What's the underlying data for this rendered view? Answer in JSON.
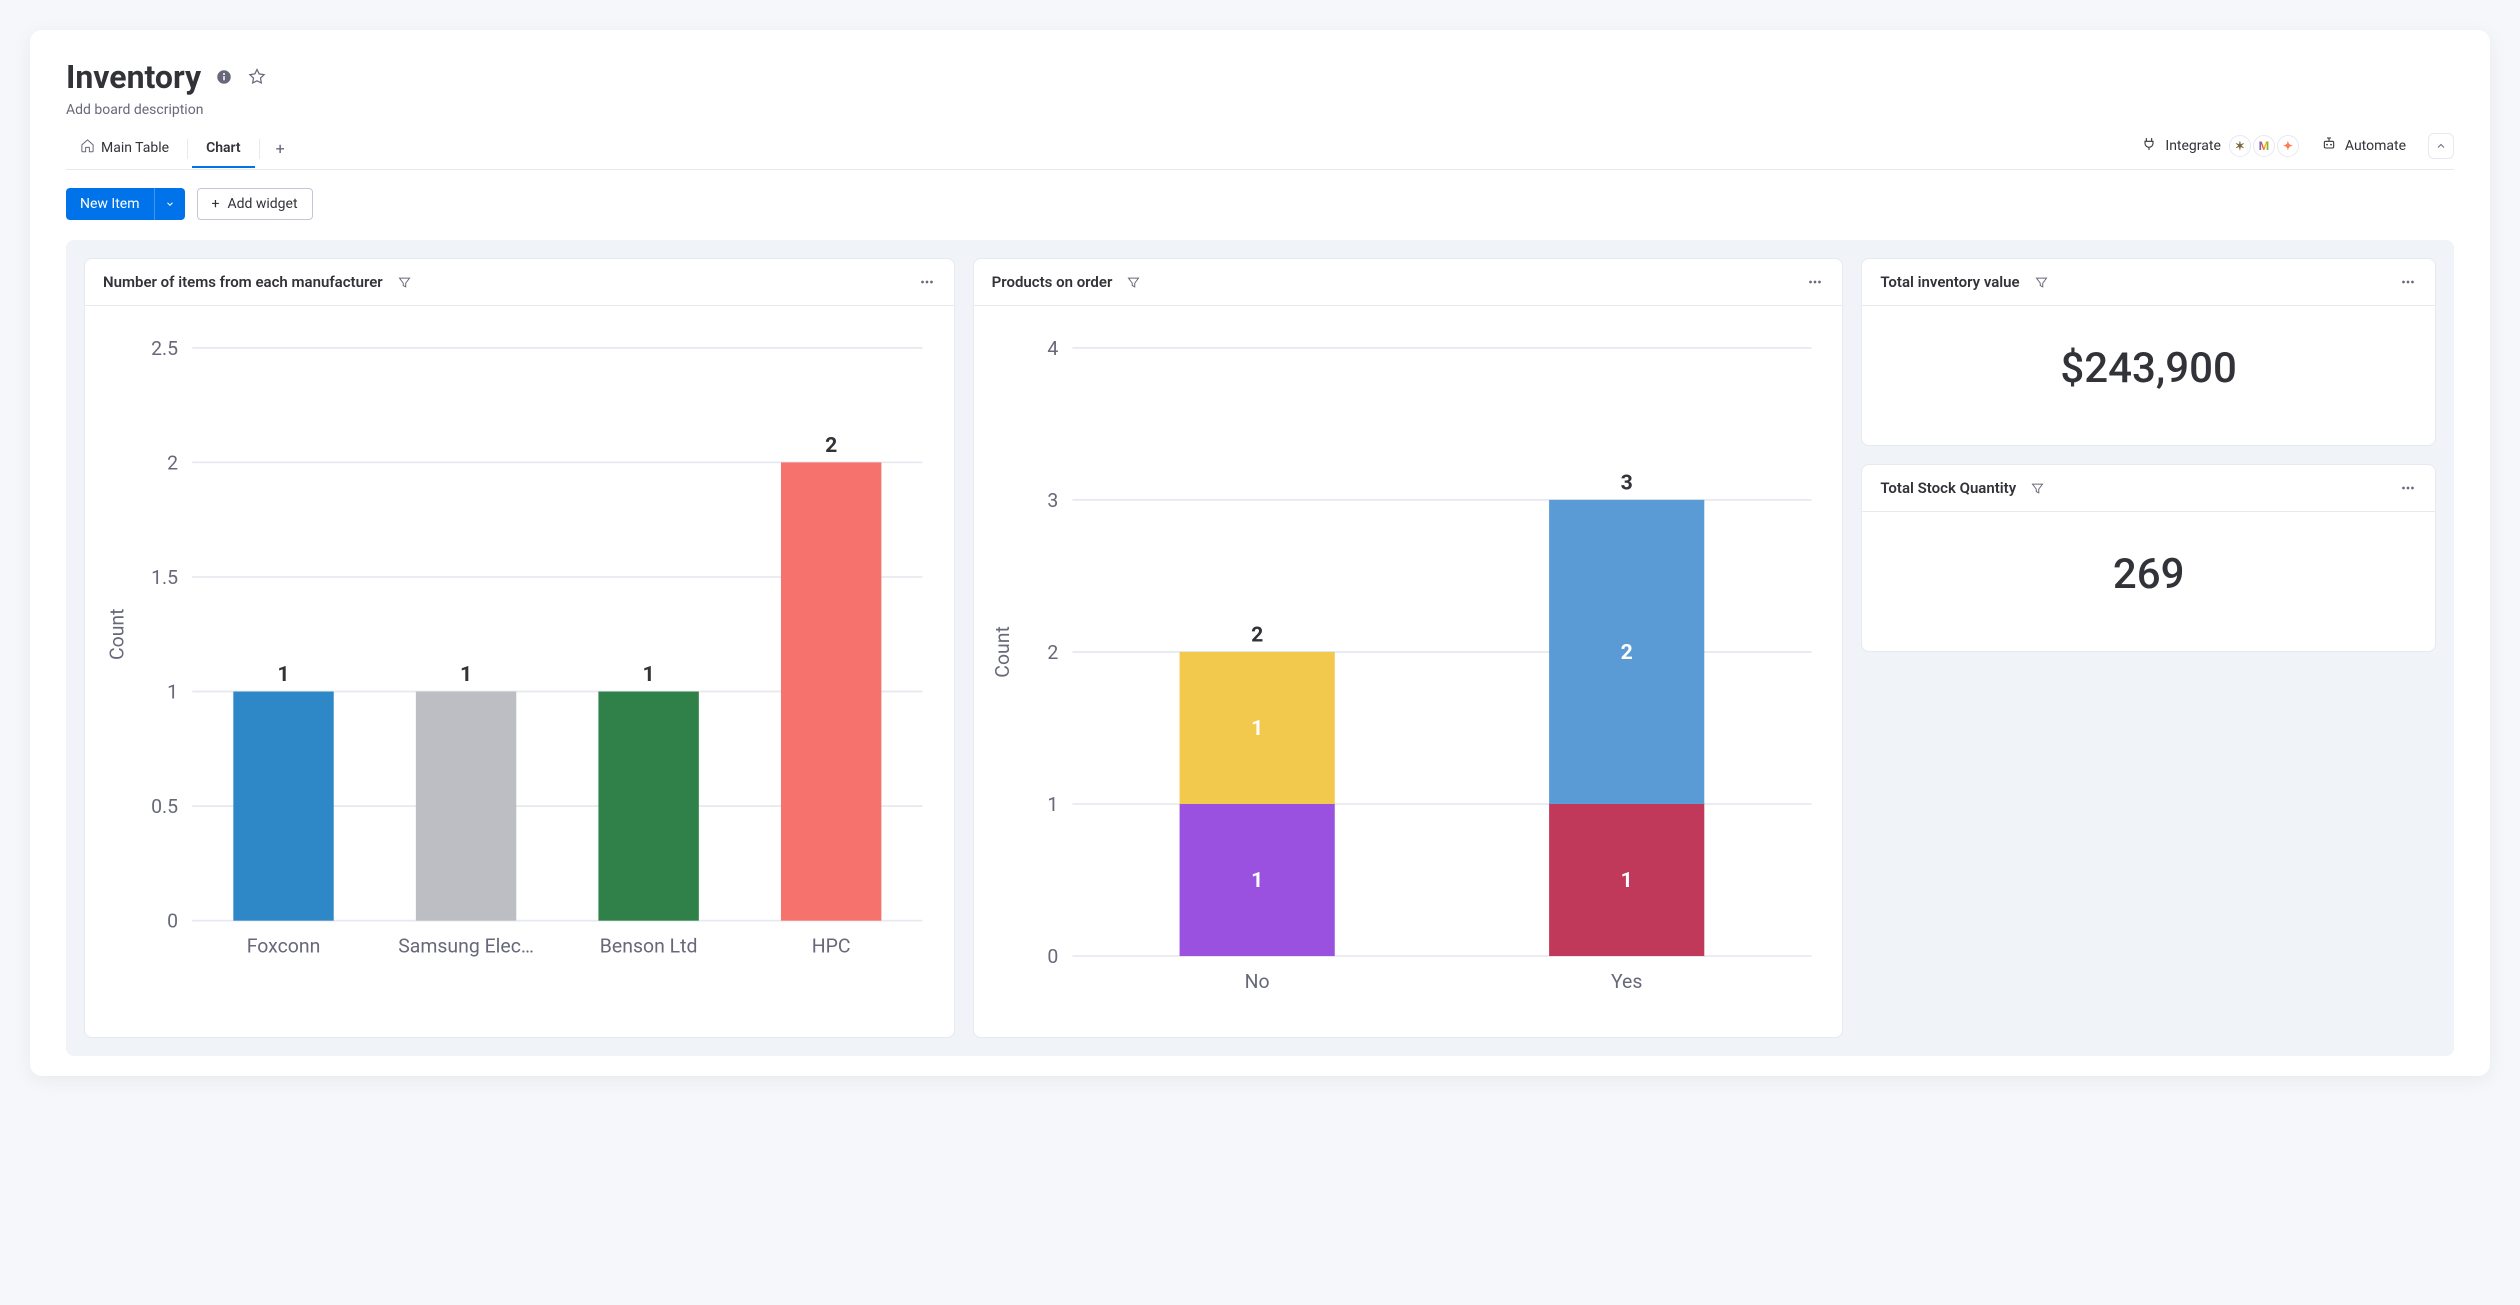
{
  "header": {
    "title": "Inventory",
    "description": "Add board description"
  },
  "tabs": {
    "items": [
      {
        "label": "Main Table",
        "active": false,
        "icon": "home"
      },
      {
        "label": "Chart",
        "active": true
      }
    ],
    "integrate_label": "Integrate",
    "automate_label": "Automate"
  },
  "toolbar": {
    "new_item_label": "New Item",
    "add_widget_label": "Add widget"
  },
  "widgets": {
    "chart1": {
      "title": "Number of items from each manufacturer",
      "type": "bar",
      "y_axis_title": "Count",
      "ylim": [
        0,
        2.5
      ],
      "ytick_step": 0.5,
      "yticks": [
        "0",
        "0.5",
        "1",
        "1.5",
        "2",
        "2.5"
      ],
      "categories": [
        "Foxconn",
        "Samsung Elec…",
        "Benson Ltd",
        "HPC"
      ],
      "values": [
        1,
        1,
        1,
        2
      ],
      "bar_colors": [
        "#2e88c7",
        "#bdbec4",
        "#2f8049",
        "#f5736c"
      ],
      "bar_labels": [
        "1",
        "1",
        "1",
        "2"
      ],
      "background_color": "#ffffff",
      "grid_color": "#e6e9ef"
    },
    "chart2": {
      "title": "Products on order",
      "type": "stacked-bar",
      "y_axis_title": "Count",
      "ylim": [
        0,
        4
      ],
      "ytick_step": 1,
      "yticks": [
        "0",
        "1",
        "2",
        "3",
        "4"
      ],
      "categories": [
        "No",
        "Yes"
      ],
      "stacks": [
        {
          "total": 2,
          "total_label": "2",
          "segments": [
            {
              "value": 1,
              "label": "1",
              "color": "#9b51e0"
            },
            {
              "value": 1,
              "label": "1",
              "color": "#f2c94c"
            }
          ]
        },
        {
          "total": 3,
          "total_label": "3",
          "segments": [
            {
              "value": 1,
              "label": "1",
              "color": "#c0395b"
            },
            {
              "value": 2,
              "label": "2",
              "color": "#5b9bd5"
            }
          ]
        }
      ],
      "background_color": "#ffffff",
      "grid_color": "#e6e9ef"
    },
    "kpi1": {
      "title": "Total inventory value",
      "value": "$243,900"
    },
    "kpi2": {
      "title": "Total Stock Quantity",
      "value": "269"
    }
  },
  "colors": {
    "primary": "#0073ea",
    "text": "#323338",
    "muted": "#676879",
    "border": "#e6e9ef",
    "panel_bg": "#f0f3f7"
  }
}
